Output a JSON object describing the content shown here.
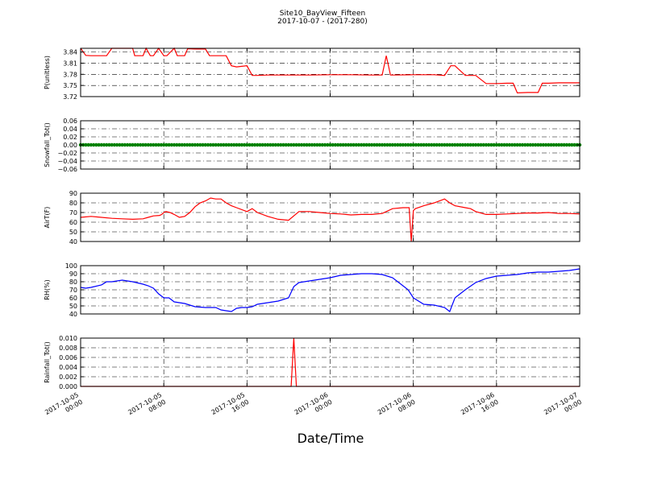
{
  "figure": {
    "title": "Site10_BayView_Fifteen",
    "subtitle": "2017-10-07 - (2017-280)",
    "xlabel": "Date/Time",
    "x_tick_labels": [
      [
        "2017-10-05",
        "00:00"
      ],
      [
        "2017-10-05",
        "08:00"
      ],
      [
        "2017-10-05",
        "16:00"
      ],
      [
        "2017-10-06",
        "00:00"
      ],
      [
        "2017-10-06",
        "08:00"
      ],
      [
        "2017-10-06",
        "16:00"
      ],
      [
        "2017-10-07",
        "00:00"
      ]
    ],
    "x_range_hours": [
      0,
      48
    ]
  },
  "chart_data": [
    {
      "type": "line",
      "ylabel": "P(unitless)",
      "ylim": [
        3.72,
        3.85
      ],
      "yticks": [
        "3.84",
        "3.81",
        "3.78",
        "3.75",
        "3.72"
      ],
      "ytick_values": [
        3.84,
        3.81,
        3.78,
        3.75,
        3.72
      ],
      "grid": true,
      "color": "#ff0000",
      "x": [
        0,
        0.5,
        1,
        2,
        2.5,
        3,
        5,
        5.2,
        6,
        6.3,
        6.7,
        7,
        7.5,
        8,
        8.3,
        9,
        9.3,
        10,
        10.3,
        11,
        12,
        12.4,
        13,
        13.5,
        14,
        14.5,
        15,
        16,
        16.5,
        17,
        18,
        20,
        22,
        24,
        26,
        28,
        29,
        29.4,
        29.8,
        30,
        32,
        34,
        35,
        35.6,
        36,
        37,
        37.6,
        38,
        39,
        40,
        41,
        41.6,
        42,
        43,
        44,
        44.4,
        45,
        46,
        48
      ],
      "values": [
        3.85,
        3.831,
        3.83,
        3.83,
        3.83,
        3.85,
        3.85,
        3.83,
        3.83,
        3.85,
        3.83,
        3.83,
        3.85,
        3.83,
        3.83,
        3.85,
        3.83,
        3.83,
        3.849,
        3.848,
        3.848,
        3.83,
        3.83,
        3.83,
        3.83,
        3.803,
        3.8,
        3.803,
        3.777,
        3.777,
        3.778,
        3.778,
        3.778,
        3.779,
        3.779,
        3.778,
        3.778,
        3.83,
        3.778,
        3.778,
        3.779,
        3.779,
        3.777,
        3.803,
        3.803,
        3.777,
        3.777,
        3.777,
        3.755,
        3.755,
        3.756,
        3.756,
        3.73,
        3.731,
        3.731,
        3.756,
        3.756,
        3.757,
        3.757
      ]
    },
    {
      "type": "scatter",
      "ylabel": "Snowfall_Tot()",
      "ylim": [
        -0.06,
        0.06
      ],
      "yticks": [
        "0.06",
        "0.04",
        "0.02",
        "0.00",
        "−0.02",
        "−0.04",
        "−0.06"
      ],
      "ytick_values": [
        0.06,
        0.04,
        0.02,
        0.0,
        -0.02,
        -0.04,
        -0.06
      ],
      "grid": true,
      "color": "#008000",
      "constant_value": 0.0,
      "x_step_hours": 0.25
    },
    {
      "type": "line",
      "ylabel": "AirT(F)",
      "ylim": [
        40,
        90
      ],
      "yticks": [
        "90",
        "80",
        "70",
        "60",
        "50",
        "40"
      ],
      "ytick_values": [
        90,
        80,
        70,
        60,
        50,
        40
      ],
      "grid": true,
      "color": "#ff0000",
      "x": [
        0,
        1,
        2,
        3,
        4,
        5,
        6,
        6.5,
        7,
        7.6,
        7.8,
        8,
        8.2,
        8.6,
        9,
        9.5,
        10,
        10.5,
        11,
        11.5,
        12,
        12.5,
        13,
        13.5,
        14,
        14.5,
        15,
        16,
        16.5,
        17,
        18,
        19,
        20,
        21,
        22,
        23,
        24,
        25,
        26,
        27,
        28,
        29,
        30,
        31,
        31.6,
        31.8,
        32,
        32.2,
        33,
        34,
        35,
        35.5,
        36,
        37,
        37.5,
        38,
        39,
        40,
        41,
        42,
        43,
        44,
        45,
        46,
        47,
        48
      ],
      "values": [
        65,
        66,
        65,
        64,
        63.5,
        63,
        63.5,
        65,
        66.5,
        67,
        68,
        70,
        71,
        70,
        68,
        65,
        66,
        70,
        76,
        80,
        82,
        85,
        84,
        84,
        80,
        77,
        75,
        71,
        74,
        70,
        66,
        63,
        62,
        71,
        71,
        70,
        69,
        68.5,
        67.5,
        68,
        68,
        69,
        74,
        75,
        75,
        40,
        72,
        74,
        77,
        80,
        84,
        80,
        77,
        75,
        74,
        71,
        68,
        68,
        68.5,
        69,
        69.5,
        69.5,
        70,
        69,
        69,
        68.5
      ]
    },
    {
      "type": "line",
      "ylabel": "RH(%)",
      "ylim": [
        40,
        100
      ],
      "yticks": [
        "100",
        "90",
        "80",
        "70",
        "60",
        "50",
        "40"
      ],
      "ytick_values": [
        100,
        90,
        80,
        70,
        60,
        50,
        40
      ],
      "grid": true,
      "color": "#0000ff",
      "x": [
        0,
        0.5,
        1,
        2,
        2.5,
        3,
        4,
        5,
        6,
        6.5,
        7,
        7.5,
        8,
        8.5,
        9,
        10,
        11,
        12,
        13,
        13.5,
        14,
        14.5,
        15,
        15.5,
        16,
        16.5,
        17,
        18,
        19,
        20,
        20.5,
        21,
        22,
        23,
        24,
        25,
        26,
        27,
        28,
        29,
        30,
        31,
        31.5,
        32,
        33,
        34,
        35,
        35.5,
        36,
        37,
        38,
        39,
        40,
        41,
        42,
        43,
        44,
        45,
        46,
        47,
        48
      ],
      "values": [
        73,
        72,
        73,
        76,
        80,
        80,
        82,
        80,
        77,
        75,
        72,
        65,
        60,
        60,
        55,
        53,
        49,
        48,
        48,
        45,
        44,
        43,
        47,
        48,
        48,
        49,
        52,
        54,
        56,
        60,
        74,
        79,
        81,
        83,
        85,
        88,
        89,
        90,
        90,
        89,
        85,
        75,
        70,
        60,
        52,
        51,
        48,
        43,
        60,
        70,
        79,
        84,
        87,
        88,
        89,
        91,
        92,
        92,
        93,
        94,
        96
      ]
    },
    {
      "type": "line",
      "ylabel": "Rainfall_Tot()",
      "ylim": [
        0,
        0.01
      ],
      "yticks": [
        "0.010",
        "0.008",
        "0.006",
        "0.004",
        "0.002",
        "0.000"
      ],
      "ytick_values": [
        0.01,
        0.008,
        0.006,
        0.004,
        0.002,
        0.0
      ],
      "grid": true,
      "color": "#ff0000",
      "x": [
        0,
        20,
        20.25,
        20.5,
        20.75,
        48
      ],
      "values": [
        0,
        0,
        0,
        0.01,
        0,
        0
      ]
    }
  ]
}
